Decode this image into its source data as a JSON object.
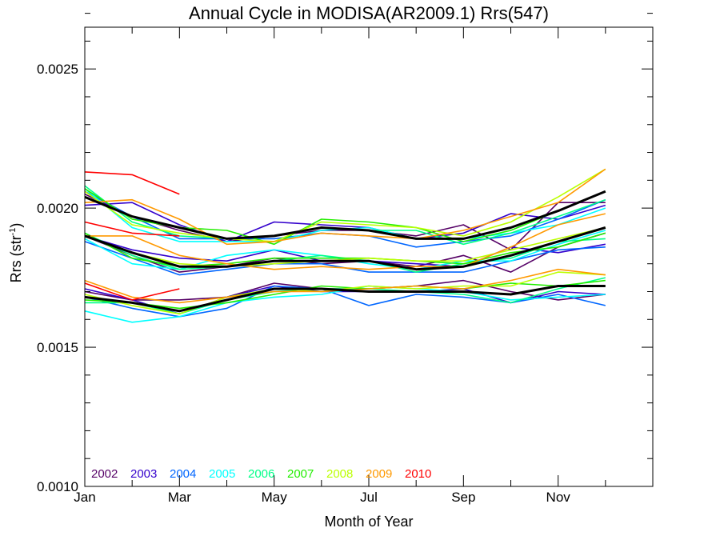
{
  "chart_data": {
    "type": "line",
    "title": "Annual Cycle in MODISA(AR2009.1) Rrs(547)",
    "xlabel": "Month of Year",
    "ylabel": {
      "base": "Rrs (str",
      "sup": "-1",
      "tail": ")"
    },
    "xlim": [
      1,
      13
    ],
    "ylim": [
      0.001,
      0.00265
    ],
    "x_ticks": [
      {
        "value": 1,
        "label": "Jan"
      },
      {
        "value": 3,
        "label": "Mar"
      },
      {
        "value": 5,
        "label": "May"
      },
      {
        "value": 7,
        "label": "Jul"
      },
      {
        "value": 9,
        "label": "Sep"
      },
      {
        "value": 11,
        "label": "Nov"
      }
    ],
    "y_ticks": [
      {
        "value": 0.001,
        "label": "0.0010"
      },
      {
        "value": 0.0015,
        "label": "0.0015"
      },
      {
        "value": 0.002,
        "label": "0.0020"
      },
      {
        "value": 0.0025,
        "label": "0.0025"
      }
    ],
    "y_minor_step": 0.0001,
    "legend_position": "bottom-left",
    "legend": [
      {
        "label": "2002",
        "color": "#550066"
      },
      {
        "label": "2003",
        "color": "#3300cc"
      },
      {
        "label": "2004",
        "color": "#0066ff"
      },
      {
        "label": "2005",
        "color": "#00ffff"
      },
      {
        "label": "2006",
        "color": "#00ff88"
      },
      {
        "label": "2007",
        "color": "#22ee00"
      },
      {
        "label": "2008",
        "color": "#bbff00"
      },
      {
        "label": "2009",
        "color": "#ff9900"
      },
      {
        "label": "2010",
        "color": "#ff0000"
      }
    ],
    "x": [
      1,
      2,
      3,
      4,
      5,
      6,
      7,
      8,
      9,
      10,
      11,
      12
    ],
    "series": [
      {
        "color": "#550066",
        "values": [
          0.00205,
          0.00197,
          0.00192,
          0.00188,
          0.0019,
          0.00192,
          0.00192,
          0.0019,
          0.00194,
          0.00185,
          0.00202,
          0.00202
        ]
      },
      {
        "color": "#3300cc",
        "values": [
          0.00201,
          0.00202,
          0.00194,
          0.00188,
          0.00195,
          0.00194,
          0.00193,
          0.00189,
          0.00191,
          0.00198,
          0.00196,
          0.00201
        ]
      },
      {
        "color": "#0066ff",
        "values": [
          0.00206,
          0.00197,
          0.00189,
          0.00189,
          0.00189,
          0.00191,
          0.0019,
          0.00186,
          0.00188,
          0.0019,
          0.00196,
          0.00203
        ]
      },
      {
        "color": "#00ffff",
        "values": [
          0.00207,
          0.00193,
          0.00188,
          0.00188,
          0.00188,
          0.00192,
          0.00193,
          0.00189,
          0.00189,
          0.00191,
          0.00194,
          0.002
        ]
      },
      {
        "color": "#00ff88",
        "values": [
          0.00208,
          0.00195,
          0.0019,
          0.00189,
          0.0019,
          0.00193,
          0.00192,
          0.00192,
          0.00187,
          0.00191,
          0.00197,
          0.00203
        ]
      },
      {
        "color": "#22ee00",
        "values": [
          0.00207,
          0.00196,
          0.00193,
          0.00192,
          0.00187,
          0.00196,
          0.00195,
          0.00193,
          0.00188,
          0.00192,
          0.00199,
          0.00206
        ]
      },
      {
        "color": "#bbff00",
        "values": [
          0.00206,
          0.00194,
          0.00191,
          0.00189,
          0.00188,
          0.00195,
          0.00194,
          0.00193,
          0.0019,
          0.00195,
          0.00204,
          0.00214
        ]
      },
      {
        "color": "#ff9900",
        "values": [
          0.00202,
          0.00203,
          0.00196,
          0.00187,
          0.00188,
          0.00191,
          0.0019,
          0.00189,
          0.00192,
          0.00197,
          0.00202,
          0.00214
        ]
      },
      {
        "color": "#ff0000",
        "values": [
          0.00213,
          0.00212,
          0.00205,
          null,
          null,
          null,
          null,
          null,
          null,
          null,
          null,
          null
        ]
      },
      {
        "color": "#000000",
        "width": 3,
        "values": [
          0.00204,
          0.00197,
          0.00193,
          0.00189,
          0.0019,
          0.00193,
          0.00192,
          0.00189,
          0.00189,
          0.00193,
          0.00199,
          0.00206
        ]
      },
      {
        "color": "#550066",
        "values": [
          0.0019,
          0.00183,
          0.00177,
          0.00179,
          0.00182,
          0.0018,
          0.00181,
          0.00179,
          0.00183,
          0.00177,
          0.00186,
          0.00191
        ]
      },
      {
        "color": "#3300cc",
        "values": [
          0.0019,
          0.00185,
          0.00182,
          0.00181,
          0.00185,
          0.00181,
          0.00181,
          0.0018,
          0.00179,
          0.00186,
          0.00184,
          0.00187
        ]
      },
      {
        "color": "#0066ff",
        "values": [
          0.00188,
          0.00182,
          0.00176,
          0.00178,
          0.0018,
          0.0018,
          0.00177,
          0.00177,
          0.00177,
          0.00181,
          0.00185,
          0.00186
        ]
      },
      {
        "color": "#00ffff",
        "values": [
          0.00189,
          0.0018,
          0.00178,
          0.00183,
          0.00185,
          0.00183,
          0.0018,
          0.00178,
          0.00181,
          0.00181,
          0.00187,
          0.00192
        ]
      },
      {
        "color": "#00ff88",
        "values": [
          0.00191,
          0.00183,
          0.00178,
          0.00179,
          0.00181,
          0.00183,
          0.00181,
          0.00177,
          0.0018,
          0.00182,
          0.00188,
          0.00189
        ]
      },
      {
        "color": "#22ee00",
        "values": [
          0.00191,
          0.00182,
          0.00179,
          0.0018,
          0.00182,
          0.00182,
          0.00182,
          0.00181,
          0.0018,
          0.00184,
          0.00186,
          0.00191
        ]
      },
      {
        "color": "#bbff00",
        "values": [
          0.0019,
          0.00184,
          0.0018,
          0.00179,
          0.0018,
          0.00181,
          0.00182,
          0.00181,
          0.00181,
          0.00185,
          0.00189,
          0.00193
        ]
      },
      {
        "color": "#ff9900",
        "values": [
          0.0019,
          0.0019,
          0.00183,
          0.0018,
          0.00178,
          0.00179,
          0.00178,
          0.00179,
          0.00179,
          0.00186,
          0.00194,
          0.00198
        ]
      },
      {
        "color": "#ff0000",
        "values": [
          0.00195,
          0.00191,
          0.0019,
          null,
          null,
          null,
          null,
          null,
          null,
          null,
          null,
          null
        ]
      },
      {
        "color": "#000000",
        "width": 3,
        "values": [
          0.0019,
          0.00184,
          0.00179,
          0.00179,
          0.00181,
          0.00181,
          0.00181,
          0.00178,
          0.00179,
          0.00183,
          0.00188,
          0.00193
        ]
      },
      {
        "color": "#550066",
        "values": [
          0.0017,
          0.00167,
          0.00167,
          0.00168,
          0.00173,
          0.00171,
          0.00171,
          0.00172,
          0.00174,
          0.0017,
          0.00167,
          0.00169
        ]
      },
      {
        "color": "#3300cc",
        "values": [
          0.00171,
          0.00167,
          0.00162,
          0.00168,
          0.00172,
          0.0017,
          0.0017,
          0.0017,
          0.00171,
          0.00166,
          0.0017,
          0.00169
        ]
      },
      {
        "color": "#0066ff",
        "values": [
          0.00168,
          0.00164,
          0.00161,
          0.00164,
          0.00172,
          0.00171,
          0.00165,
          0.00169,
          0.00168,
          0.00166,
          0.00169,
          0.00165
        ]
      },
      {
        "color": "#00ffff",
        "values": [
          0.00163,
          0.00159,
          0.00161,
          0.00166,
          0.00168,
          0.00169,
          0.00172,
          0.00171,
          0.0017,
          0.00167,
          0.00168,
          0.00169
        ]
      },
      {
        "color": "#00ff88",
        "values": [
          0.00166,
          0.00166,
          0.00162,
          0.00167,
          0.0017,
          0.00171,
          0.00171,
          0.0017,
          0.00169,
          0.00166,
          0.00171,
          0.00175
        ]
      },
      {
        "color": "#22ee00",
        "values": [
          0.00167,
          0.00166,
          0.00164,
          0.00166,
          0.00169,
          0.00172,
          0.00171,
          0.00172,
          0.00171,
          0.00173,
          0.00172,
          0.00174
        ]
      },
      {
        "color": "#bbff00",
        "values": [
          0.00169,
          0.00165,
          0.00162,
          0.00168,
          0.00171,
          0.0017,
          0.00172,
          0.00171,
          0.00172,
          0.00172,
          0.00177,
          0.00176
        ]
      },
      {
        "color": "#ff9900",
        "values": [
          0.00174,
          0.00168,
          0.00166,
          0.00168,
          0.0017,
          0.0017,
          0.00171,
          0.00172,
          0.00171,
          0.00174,
          0.00178,
          0.00176
        ]
      },
      {
        "color": "#ff0000",
        "values": [
          0.00173,
          0.00167,
          0.00171,
          null,
          null,
          null,
          null,
          null,
          null,
          null,
          null,
          null
        ]
      },
      {
        "color": "#000000",
        "width": 3,
        "values": [
          0.00168,
          0.00166,
          0.00163,
          0.00167,
          0.00171,
          0.00171,
          0.0017,
          0.0017,
          0.0017,
          0.00169,
          0.00172,
          0.00172
        ]
      }
    ]
  }
}
